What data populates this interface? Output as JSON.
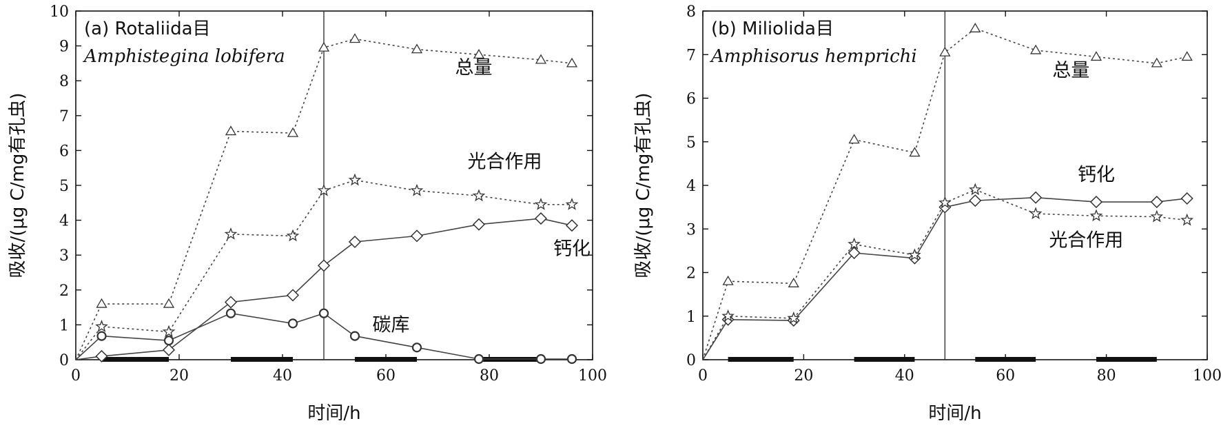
{
  "chart_data": [
    {
      "type": "line",
      "panel_label": "(a) Rotaliida目",
      "species": "Amphistegina lobifera",
      "xlabel": "时间/h",
      "ylabel": "吸收/(μg C/mg有孔虫)",
      "xlim": [
        0,
        100
      ],
      "ylim": [
        0,
        10
      ],
      "xticks": [
        0,
        20,
        40,
        60,
        80,
        100
      ],
      "yticks": [
        0,
        1,
        2,
        3,
        4,
        5,
        6,
        7,
        8,
        9,
        10
      ],
      "vline_x": 48,
      "dark_periods": [
        [
          5,
          18
        ],
        [
          30,
          42
        ],
        [
          54,
          66
        ],
        [
          78,
          90
        ]
      ],
      "series": [
        {
          "name": "总量",
          "marker": "triangle",
          "line": "dotted",
          "x": [
            0,
            5,
            18,
            30,
            42,
            48,
            54,
            66,
            78,
            90,
            96
          ],
          "y": [
            0,
            1.6,
            1.6,
            6.55,
            6.5,
            8.95,
            9.2,
            8.9,
            8.75,
            8.6,
            8.5
          ],
          "label_at": [
            77,
            8.2
          ]
        },
        {
          "name": "光合作用",
          "marker": "star",
          "line": "dotted",
          "x": [
            0,
            5,
            18,
            30,
            42,
            48,
            54,
            66,
            78,
            90,
            96
          ],
          "y": [
            0,
            0.95,
            0.8,
            3.6,
            3.55,
            4.85,
            5.15,
            4.85,
            4.7,
            4.45,
            4.45
          ],
          "label_at": [
            83,
            5.5
          ]
        },
        {
          "name": "钙化",
          "marker": "diamond",
          "line": "solid",
          "x": [
            0,
            5,
            18,
            30,
            42,
            48,
            54,
            66,
            78,
            90,
            96
          ],
          "y": [
            0,
            0.1,
            0.28,
            1.65,
            1.85,
            2.7,
            3.38,
            3.55,
            3.88,
            4.05,
            3.85
          ],
          "label_at": [
            96,
            3.0
          ]
        },
        {
          "name": "碳库",
          "marker": "circle",
          "line": "solid",
          "x": [
            0,
            5,
            18,
            30,
            42,
            48,
            54,
            66,
            78,
            90,
            96
          ],
          "y": [
            0,
            0.68,
            0.55,
            1.33,
            1.04,
            1.33,
            0.68,
            0.35,
            0.02,
            0.02,
            0.02
          ],
          "label_at": [
            61,
            0.82
          ]
        }
      ]
    },
    {
      "type": "line",
      "panel_label": "(b) Miliolida目",
      "species": "Amphisorus hemprichi",
      "xlabel": "时间/h",
      "ylabel": "吸收/(μg C/mg有孔虫)",
      "xlim": [
        0,
        100
      ],
      "ylim": [
        0,
        8
      ],
      "xticks": [
        0,
        20,
        40,
        60,
        80,
        100
      ],
      "yticks": [
        0,
        1,
        2,
        3,
        4,
        5,
        6,
        7,
        8
      ],
      "vline_x": 48,
      "dark_periods": [
        [
          5,
          18
        ],
        [
          30,
          42
        ],
        [
          54,
          66
        ],
        [
          78,
          90
        ]
      ],
      "series": [
        {
          "name": "总量",
          "marker": "triangle",
          "line": "dotted",
          "x": [
            0,
            5,
            18,
            30,
            42,
            48,
            54,
            66,
            78,
            90,
            96
          ],
          "y": [
            0,
            1.8,
            1.75,
            5.05,
            4.75,
            7.05,
            7.6,
            7.1,
            6.95,
            6.8,
            6.95
          ],
          "label_at": [
            73,
            6.5
          ]
        },
        {
          "name": "钙化",
          "marker": "diamond",
          "line": "solid",
          "x": [
            0,
            5,
            18,
            30,
            42,
            48,
            54,
            66,
            78,
            90,
            96
          ],
          "y": [
            0,
            0.92,
            0.9,
            2.45,
            2.33,
            3.5,
            3.65,
            3.72,
            3.62,
            3.62,
            3.7
          ],
          "label_at": [
            78,
            4.1
          ]
        },
        {
          "name": "光合作用",
          "marker": "star",
          "line": "dotted",
          "x": [
            0,
            5,
            18,
            30,
            42,
            48,
            54,
            66,
            78,
            90,
            96
          ],
          "y": [
            0,
            1.0,
            0.95,
            2.65,
            2.4,
            3.6,
            3.9,
            3.35,
            3.3,
            3.28,
            3.2
          ],
          "label_at": [
            76,
            2.6
          ]
        }
      ]
    }
  ]
}
